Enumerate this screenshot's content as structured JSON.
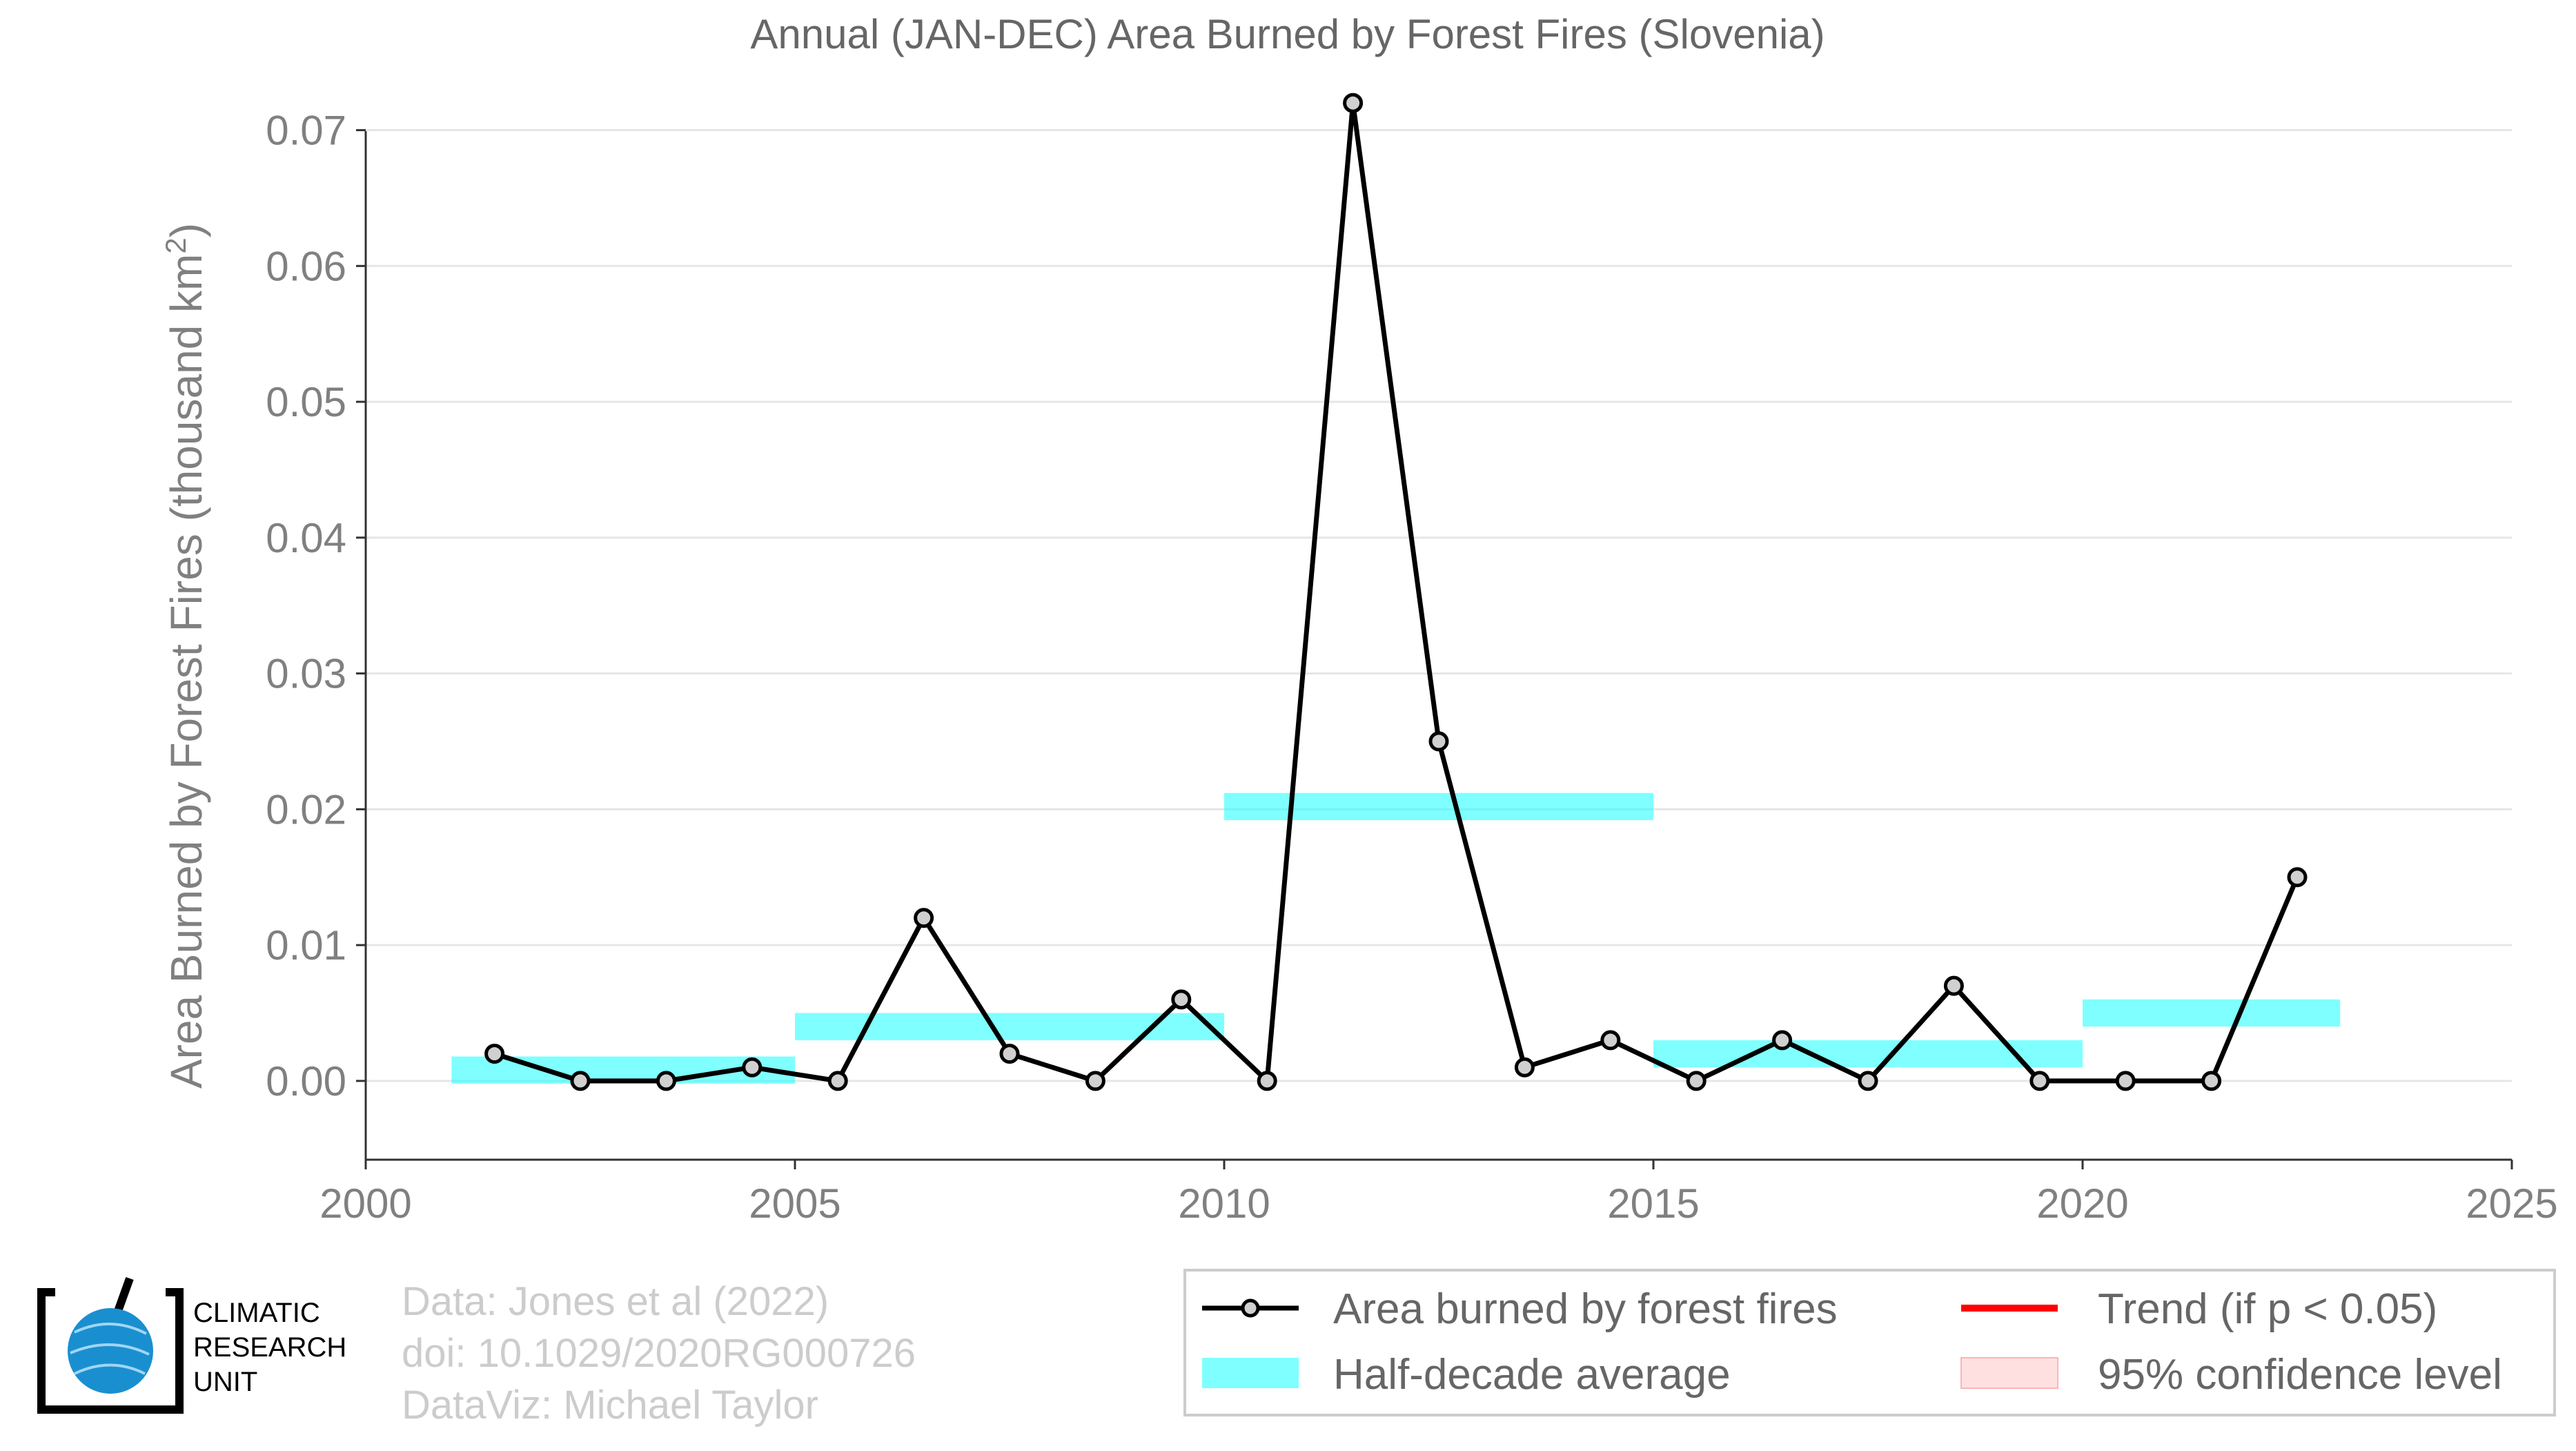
{
  "chart_data": {
    "type": "line",
    "title": "Annual (JAN-DEC) Area Burned by Forest Fires (Slovenia)",
    "ylabel": "Area Burned by Forest Fires (thousand km",
    "ylabel_superscript": "2",
    "ylabel_suffix": ")",
    "xlabel": "",
    "xlim": [
      2000,
      2025
    ],
    "ylim": [
      -0.0058,
      0.0745
    ],
    "grid": true,
    "x_ticks": [
      2000,
      2005,
      2010,
      2015,
      2020,
      2025
    ],
    "x_tick_labels": [
      "2000",
      "2005",
      "2010",
      "2015",
      "2020",
      "2025"
    ],
    "y_ticks": [
      0.0,
      0.01,
      0.02,
      0.03,
      0.04,
      0.05,
      0.06,
      0.07
    ],
    "y_tick_labels": [
      "0.00",
      "0.01",
      "0.02",
      "0.03",
      "0.04",
      "0.05",
      "0.06",
      "0.07"
    ],
    "series": [
      {
        "name": "Area burned by forest fires",
        "x": [
          2001.5,
          2002.5,
          2003.5,
          2004.5,
          2005.5,
          2006.5,
          2007.5,
          2008.5,
          2009.5,
          2010.5,
          2011.5,
          2012.5,
          2013.5,
          2014.5,
          2015.5,
          2016.5,
          2017.5,
          2018.5,
          2019.5,
          2020.5,
          2021.5,
          2022.5
        ],
        "values": [
          0.002,
          0.0,
          0.0,
          0.001,
          0.0,
          0.012,
          0.002,
          0.0,
          0.006,
          0.0,
          0.072,
          0.025,
          0.001,
          0.003,
          0.0,
          0.003,
          0.0,
          0.007,
          0.0,
          0.0,
          0.0,
          0.015
        ],
        "color": "#000000",
        "marker_fill": "#d0d0d0"
      }
    ],
    "half_decade_average": {
      "name": "Half-decade average",
      "color": "#00ffff",
      "segments": [
        {
          "x_start": 2001,
          "x_end": 2005,
          "value": 0.0008
        },
        {
          "x_start": 2005,
          "x_end": 2010,
          "value": 0.004
        },
        {
          "x_start": 2010,
          "x_end": 2015,
          "value": 0.0202
        },
        {
          "x_start": 2015,
          "x_end": 2020,
          "value": 0.002
        },
        {
          "x_start": 2020,
          "x_end": 2023,
          "value": 0.005
        }
      ]
    },
    "legend": {
      "placement": "bottom-right",
      "items": [
        {
          "label": "Area burned by forest fires",
          "kind": "line-marker",
          "color": "#000000"
        },
        {
          "label": "Trend (if p < 0.05)",
          "kind": "line",
          "color": "#ff0000"
        },
        {
          "label": "Half-decade average",
          "kind": "band",
          "color": "#00ffff"
        },
        {
          "label": "95% confidence level",
          "kind": "band",
          "color": "#ffcccc"
        }
      ]
    }
  },
  "credits": {
    "line1": "Data: Jones et al (2022)",
    "line2": "doi: 10.1029/2020RG000726",
    "line3": "DataViz: Michael Taylor"
  },
  "logo": {
    "line1": "CLIMATIC",
    "line2": "RESEARCH",
    "line3": "UNIT",
    "globe_color": "#1a8fd0"
  }
}
